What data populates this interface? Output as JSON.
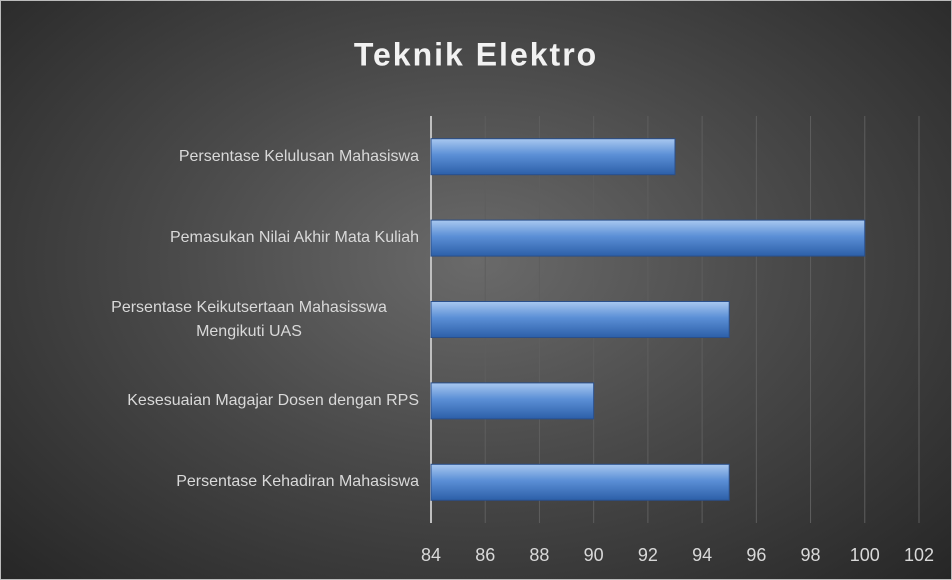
{
  "chart_data": {
    "type": "barh",
    "title": "Teknik Elektro",
    "categories": [
      "Persentase Kelulusan Mahasiswa",
      "Pemasukan Nilai Akhir Mata Kuliah",
      "Persentase Keikutsertaan Mahasisswa Mengikuti UAS",
      "Kesesuaian Magajar Dosen dengan RPS",
      "Persentase Kehadiran Mahasiswa"
    ],
    "values": [
      93,
      100,
      95,
      90,
      95
    ],
    "color": "#4f86d0",
    "xlim": [
      84,
      102
    ],
    "xticks": [
      84,
      86,
      88,
      90,
      92,
      94,
      96,
      98,
      100,
      102
    ],
    "grid": true
  }
}
